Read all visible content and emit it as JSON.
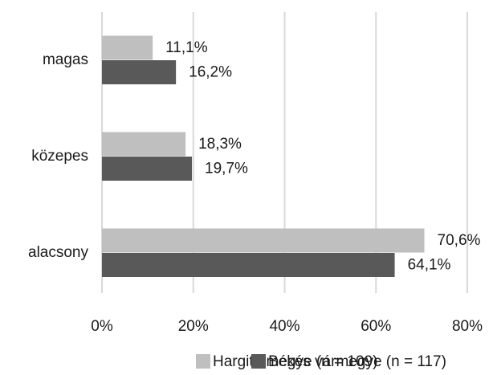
{
  "chart_data": {
    "type": "hbar",
    "categories": [
      "magas",
      "közepes",
      "alacsony"
    ],
    "series": [
      {
        "name": "Hargita megye (n = 109)",
        "color": "#bfbfbf",
        "values": [
          11.1,
          18.3,
          70.6
        ],
        "value_labels": [
          "11,1%",
          "18,3%",
          "70,6%"
        ]
      },
      {
        "name": "Békés vármegye (n = 117)",
        "color": "#595959",
        "values": [
          16.2,
          19.7,
          64.1
        ],
        "value_labels": [
          "16,2%",
          "19,7%",
          "64,1%"
        ]
      }
    ],
    "xlim": [
      0,
      80
    ],
    "xticks": [
      {
        "value": 0,
        "label": "0%"
      },
      {
        "value": 20,
        "label": "20%"
      },
      {
        "value": 40,
        "label": "40%"
      },
      {
        "value": 60,
        "label": "60%"
      },
      {
        "value": 80,
        "label": "80%"
      }
    ],
    "grid": true,
    "legend": "bottom"
  }
}
